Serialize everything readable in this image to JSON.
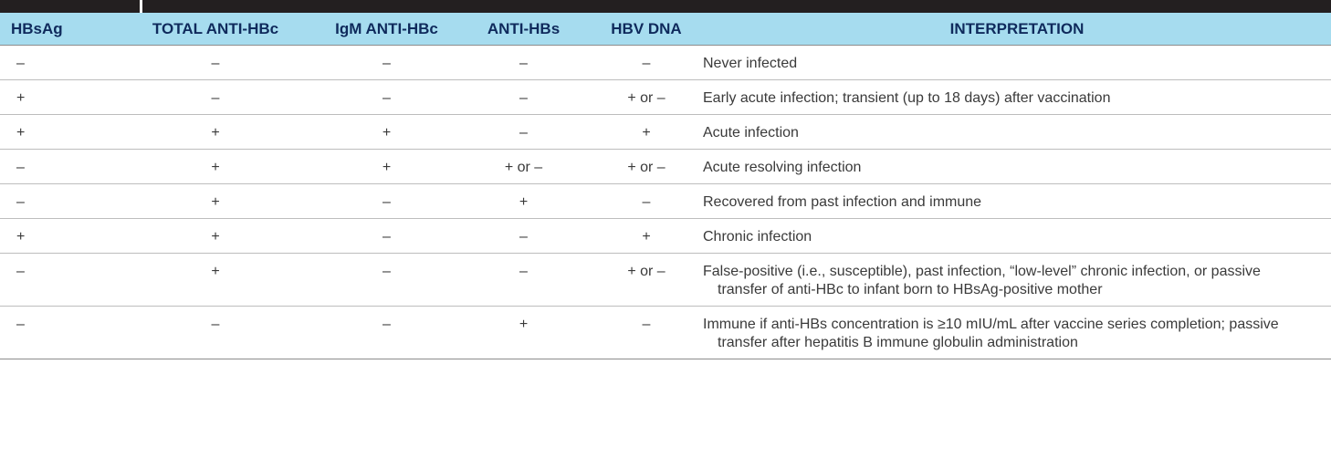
{
  "headers": [
    "HBsAg",
    "TOTAL ANTI-HBc",
    "IgM ANTI-HBc",
    "ANTI-HBs",
    "HBV DNA",
    "INTERPRETATION"
  ],
  "rows": [
    {
      "hbsag": "–",
      "total_anti_hbc": "–",
      "igm_anti_hbc": "–",
      "anti_hbs": "–",
      "hbv_dna": "–",
      "interpretation": "Never infected"
    },
    {
      "hbsag": "+",
      "total_anti_hbc": "–",
      "igm_anti_hbc": "–",
      "anti_hbs": "–",
      "hbv_dna": "+ or –",
      "interpretation": "Early acute infection; transient (up to 18 days) after vaccination"
    },
    {
      "hbsag": "+",
      "total_anti_hbc": "+",
      "igm_anti_hbc": "+",
      "anti_hbs": "–",
      "hbv_dna": "+",
      "interpretation": "Acute infection"
    },
    {
      "hbsag": "–",
      "total_anti_hbc": "+",
      "igm_anti_hbc": "+",
      "anti_hbs": "+ or –",
      "hbv_dna": "+ or –",
      "interpretation": "Acute resolving infection"
    },
    {
      "hbsag": "–",
      "total_anti_hbc": "+",
      "igm_anti_hbc": "–",
      "anti_hbs": "+",
      "hbv_dna": "–",
      "interpretation": "Recovered from past infection and immune"
    },
    {
      "hbsag": "+",
      "total_anti_hbc": "+",
      "igm_anti_hbc": "–",
      "anti_hbs": "–",
      "hbv_dna": "+",
      "interpretation": "Chronic infection"
    },
    {
      "hbsag": "–",
      "total_anti_hbc": "+",
      "igm_anti_hbc": "–",
      "anti_hbs": "–",
      "hbv_dna": "+ or –",
      "interpretation": "False-positive (i.e., susceptible), past infection, “low-level” chronic infection, or passive transfer of anti-HBc to infant born to HBsAg-positive mother"
    },
    {
      "hbsag": "–",
      "total_anti_hbc": "–",
      "igm_anti_hbc": "–",
      "anti_hbs": "+",
      "hbv_dna": "–",
      "interpretation": "Immune if anti-HBs concentration is ≥10 mIU/mL after vaccine series completion; passive transfer after hepatitis B immune globulin administration"
    }
  ],
  "colors": {
    "header_bg": "#a6dcef",
    "header_text": "#0f2a5c",
    "top_bar": "#231f20",
    "body_text": "#3a3a3a"
  }
}
